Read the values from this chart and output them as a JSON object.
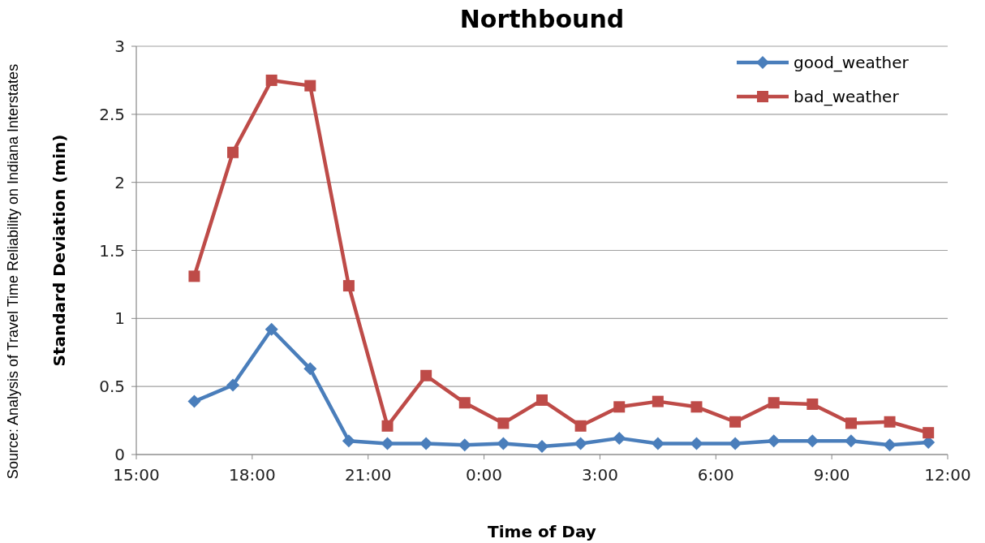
{
  "chart_data": {
    "type": "line",
    "title": "Northbound",
    "xlabel": "Time of Day",
    "ylabel": "Standard Deviation (min)",
    "annotations": [
      "Source:  Analysis of Travel Time Reliability on Indiana Interstates"
    ],
    "x": [
      "2000-01-01T16:30",
      "2000-01-01T17:30",
      "2000-01-01T18:30",
      "2000-01-01T19:30",
      "2000-01-01T20:30",
      "2000-01-01T21:30",
      "2000-01-01T22:30",
      "2000-01-01T23:30",
      "2000-01-02T00:30",
      "2000-01-02T01:30",
      "2000-01-02T02:30",
      "2000-01-02T03:30",
      "2000-01-02T04:30",
      "2000-01-02T05:30",
      "2000-01-02T06:30",
      "2000-01-02T07:30",
      "2000-01-02T08:30",
      "2000-01-02T09:30",
      "2000-01-02T10:30",
      "2000-01-02T11:30"
    ],
    "series": [
      {
        "name": "good_weather",
        "color": "#4a7ebb",
        "marker": "diamond",
        "values": [
          0.39,
          0.51,
          0.92,
          0.63,
          0.1,
          0.08,
          0.08,
          0.07,
          0.08,
          0.06,
          0.08,
          0.12,
          0.08,
          0.08,
          0.08,
          0.1,
          0.1,
          0.1,
          0.07,
          0.09
        ]
      },
      {
        "name": "bad_weather",
        "color": "#be4b48",
        "marker": "square",
        "values": [
          1.31,
          2.22,
          2.75,
          2.71,
          1.24,
          0.21,
          0.58,
          0.38,
          0.23,
          0.4,
          0.21,
          0.35,
          0.39,
          0.35,
          0.24,
          0.38,
          0.37,
          0.23,
          0.24,
          0.16
        ]
      }
    ],
    "xlim": [
      "2000-01-01T15:00",
      "2000-01-02T12:00"
    ],
    "xticks": [
      {
        "value": "2000-01-01T15:00",
        "label": "15:00"
      },
      {
        "value": "2000-01-01T18:00",
        "label": "18:00"
      },
      {
        "value": "2000-01-01T21:00",
        "label": "21:00"
      },
      {
        "value": "2000-01-02T00:00",
        "label": "0:00"
      },
      {
        "value": "2000-01-02T03:00",
        "label": "3:00"
      },
      {
        "value": "2000-01-02T06:00",
        "label": "6:00"
      },
      {
        "value": "2000-01-02T09:00",
        "label": "9:00"
      },
      {
        "value": "2000-01-02T12:00",
        "label": "12:00"
      }
    ],
    "ylim": [
      0,
      3
    ],
    "yticks": [
      0,
      {
        "value": 0.5,
        "label": "0.5"
      },
      1,
      {
        "value": 1.5,
        "label": "1.5"
      },
      2,
      {
        "value": 2.5,
        "label": "2.5"
      },
      3
    ],
    "grid": "y",
    "legend": "top right",
    "line_style": "solid"
  }
}
